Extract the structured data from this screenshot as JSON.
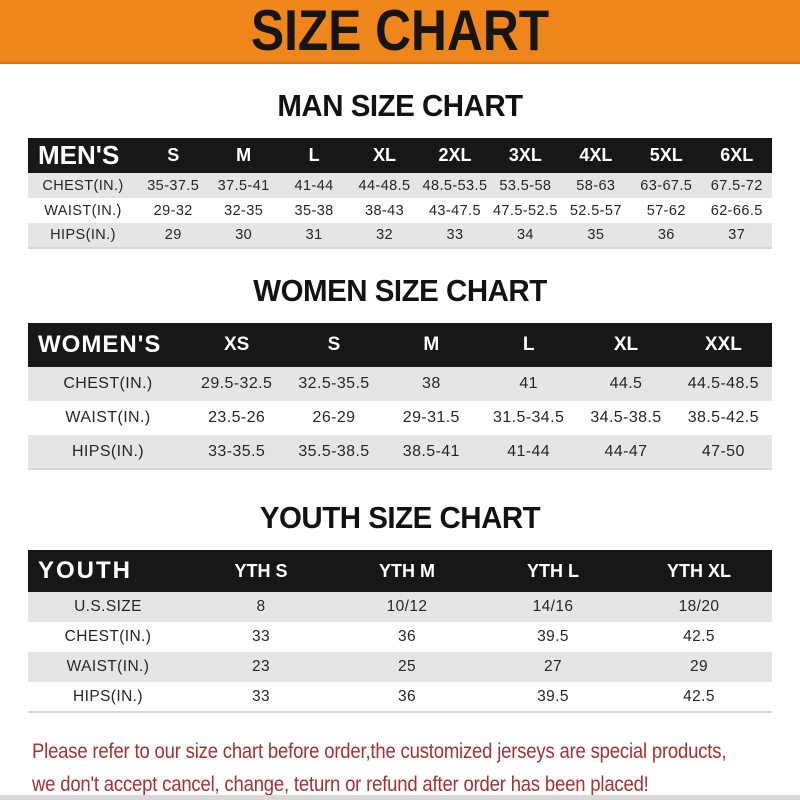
{
  "banner": {
    "title": "SIZE CHART"
  },
  "sections": [
    {
      "heading": "MAN SIZE CHART",
      "label": "MEN'S",
      "columns": [
        "S",
        "M",
        "L",
        "XL",
        "2XL",
        "3XL",
        "4XL",
        "5XL",
        "6XL"
      ],
      "rows": [
        {
          "label": "CHEST(IN.)",
          "values": [
            "35-37.5",
            "37.5-41",
            "41-44",
            "44-48.5",
            "48.5-53.5",
            "53.5-58",
            "58-63",
            "63-67.5",
            "67.5-72"
          ]
        },
        {
          "label": "WAIST(IN.)",
          "values": [
            "29-32",
            "32-35",
            "35-38",
            "38-43",
            "43-47.5",
            "47.5-52.5",
            "52.5-57",
            "57-62",
            "62-66.5"
          ]
        },
        {
          "label": "HIPS(IN.)",
          "values": [
            "29",
            "30",
            "31",
            "32",
            "33",
            "34",
            "35",
            "36",
            "37"
          ]
        }
      ]
    },
    {
      "heading": "WOMEN SIZE CHART",
      "label": "WOMEN'S",
      "columns": [
        "XS",
        "S",
        "M",
        "L",
        "XL",
        "XXL"
      ],
      "rows": [
        {
          "label": "CHEST(IN.)",
          "values": [
            "29.5-32.5",
            "32.5-35.5",
            "38",
            "41",
            "44.5",
            "44.5-48.5"
          ]
        },
        {
          "label": "WAIST(IN.)",
          "values": [
            "23.5-26",
            "26-29",
            "29-31.5",
            "31.5-34.5",
            "34.5-38.5",
            "38.5-42.5"
          ]
        },
        {
          "label": "HIPS(IN.)",
          "values": [
            "33-35.5",
            "35.5-38.5",
            "38.5-41",
            "41-44",
            "44-47",
            "47-50"
          ]
        }
      ]
    },
    {
      "heading": "YOUTH SIZE CHART",
      "label": "YOUTH",
      "columns": [
        "YTH S",
        "YTH M",
        "YTH L",
        "YTH XL"
      ],
      "rows": [
        {
          "label": "U.S.SIZE",
          "values": [
            "8",
            "10/12",
            "14/16",
            "18/20"
          ]
        },
        {
          "label": "CHEST(IN.)",
          "values": [
            "33",
            "36",
            "39.5",
            "42.5"
          ]
        },
        {
          "label": "WAIST(IN.)",
          "values": [
            "23",
            "25",
            "27",
            "29"
          ]
        },
        {
          "label": "HIPS(IN.)",
          "values": [
            "33",
            "36",
            "39.5",
            "42.5"
          ]
        }
      ]
    }
  ],
  "footer": {
    "line1": "Please refer to our size chart before order,the customized jerseys are special products,",
    "line2": "we don't accept cancel, change, teturn or refund after order has been placed!"
  },
  "colors": {
    "banner_bg": "#ef861b",
    "header_bar_bg": "#171717",
    "header_bar_fg": "#ffffff",
    "stripe_row_bg": "#e6e5e3",
    "footer_text": "#a33231",
    "banner_text": "#171513"
  }
}
